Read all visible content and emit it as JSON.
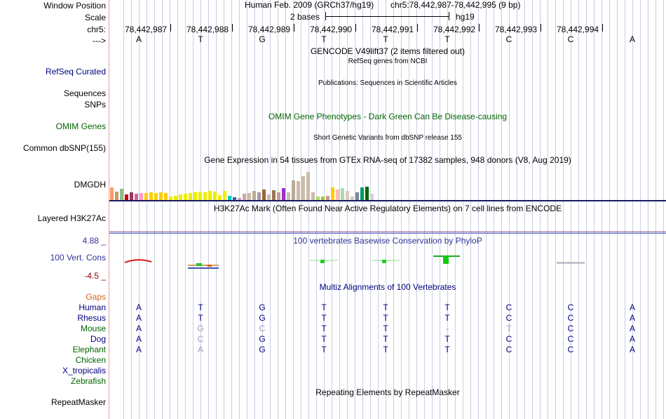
{
  "labels": {
    "window_position": "Window Position",
    "scale": "Scale",
    "chr": "chr5:",
    "arrow": "--->",
    "refseq": "RefSeq Curated",
    "sequences": "Sequences",
    "snps": "SNPs",
    "omim_genes": "OMIM Genes",
    "common_dbsnp": "Common dbSNP(155)",
    "dmgdh": "DMGDH",
    "layered": "Layered H3K27Ac",
    "cons_max": "4.88 _",
    "cons_name": "100 Vert. Cons",
    "cons_min": "-4.5 _",
    "gaps": "Gaps",
    "repeatmasker": "RepeatMasker",
    "species": [
      "Human",
      "Rhesus",
      "Mouse",
      "Dog",
      "Elephant",
      "Chicken",
      "X_tropicalis",
      "Zebrafish"
    ]
  },
  "header": {
    "assembly": "Human Feb. 2009 (GRCh37/hg19)",
    "position": "chr5:78,442,987-78,442,995 (9 bp)",
    "scale_text": "2 bases",
    "scale_db": "hg19"
  },
  "positions": [
    "78,442,987",
    "78,442,988",
    "78,442,989",
    "78,442,990",
    "78,442,991",
    "78,442,992",
    "78,442,993",
    "78,442,994"
  ],
  "bases": [
    "A",
    "T",
    "G",
    "T",
    "T",
    "T",
    "C",
    "C",
    "A"
  ],
  "tracks": {
    "gencode": "GENCODE V49lift37 (2 items filtered out)",
    "refseq_desc": "RefSeq genes from NCBI",
    "publications": "Publications: Sequences in Scientific Articles",
    "omim_pheno": "OMIM Gene Phenotypes - Dark Green Can Be Disease-causing",
    "short_variants": "Short Genetic Variants from dbSNP release 155",
    "gtex": "Gene Expression in 54 tissues from GTEx RNA-seq of 17382 samples, 948 donors (V8, Aug 2019)",
    "h3k27ac": "H3K27Ac Mark (Often Found Near Active Regulatory Elements) on 7 cell lines from ENCODE",
    "phylop": "100 vertebrates Basewise Conservation by PhyloP",
    "multiz": "Multiz Alignments of 100 Vertebrates",
    "repeat": "Repeating Elements by RepeatMasker"
  },
  "alignment": {
    "human": [
      "A",
      "T",
      "G",
      "T",
      "T",
      "T",
      "C",
      "C",
      "A"
    ],
    "rhesus": [
      "A",
      "T",
      "G",
      "T",
      "T",
      "T",
      "C",
      "C",
      "A"
    ],
    "mouse": [
      "A",
      "G",
      "C",
      "T",
      "T",
      "-",
      "T",
      "C",
      "A"
    ],
    "dog": [
      "A",
      "C",
      "G",
      "T",
      "T",
      "T",
      "C",
      "C",
      "A"
    ],
    "elephant": [
      "A",
      "A",
      "G",
      "T",
      "T",
      "T",
      "C",
      "C",
      "A"
    ]
  },
  "chart_data": {
    "type": "bar",
    "title": "Gene Expression in 54 tissues from GTEx RNA-seq of 17382 samples, 948 donors (V8, Aug 2019)",
    "ylim": [
      0,
      50
    ],
    "values": [
      18,
      12,
      16,
      8,
      11,
      9,
      10,
      10,
      11,
      10,
      11,
      10,
      5,
      6,
      8,
      9,
      10,
      11,
      12,
      11,
      13,
      12,
      7,
      13,
      6,
      4,
      3,
      9,
      10,
      13,
      11,
      15,
      8,
      14,
      11,
      17,
      11,
      29,
      28,
      35,
      41,
      11,
      5,
      5,
      6,
      18,
      15,
      17,
      13,
      5,
      11,
      18,
      19,
      9
    ],
    "colors": [
      "#ff9966",
      "#cc9966",
      "#8fbc8f",
      "#cc0000",
      "#993366",
      "#cc6699",
      "#ff99cc",
      "#ffcc00",
      "#ffcc00",
      "#ffcc00",
      "#ffcc00",
      "#ffcc00",
      "#eeee00",
      "#eeee00",
      "#eeee00",
      "#eeee00",
      "#eeee00",
      "#eeee00",
      "#eeee00",
      "#eeee00",
      "#eeee00",
      "#eeee00",
      "#eeee00",
      "#eeee00",
      "#00cccc",
      "#336699",
      "#cc99cc",
      "#ccaa99",
      "#ccbbaa",
      "#bbaa99",
      "#aa99aa",
      "#996633",
      "#ccbbaa",
      "#997755",
      "#cc9999",
      "#9933cc",
      "#ccbbaa",
      "#bbaa99",
      "#ccbbaa",
      "#ccbbaa",
      "#ccbbaa",
      "#ccbbaa",
      "#aadd66",
      "#99cc33",
      "#cc9999",
      "#ffcc00",
      "#ffbbbb",
      "#aaddaa",
      "#ddccbb",
      "#cccccc",
      "#778899",
      "#009966",
      "#006600",
      "#ddccdd"
    ]
  }
}
